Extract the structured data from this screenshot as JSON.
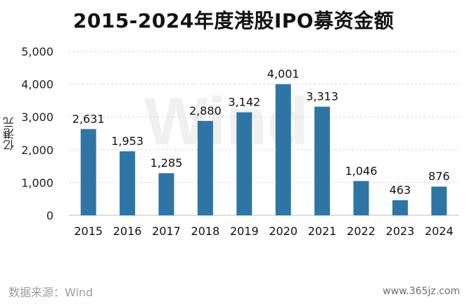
{
  "chart_data": {
    "type": "bar",
    "title": "2015-2024年度港股IPO募资金额",
    "ylabel": "亿港元",
    "xlabel": "",
    "categories": [
      "2015",
      "2016",
      "2017",
      "2018",
      "2019",
      "2020",
      "2021",
      "2022",
      "2023",
      "2024"
    ],
    "values": [
      2631,
      1953,
      1285,
      2880,
      3142,
      4001,
      3313,
      1046,
      463,
      876
    ],
    "value_labels": [
      "2,631",
      "1,953",
      "1,285",
      "2,880",
      "3,142",
      "4,001",
      "3,313",
      "1,046",
      "463",
      "876"
    ],
    "ylim": [
      0,
      5000
    ],
    "yticks": [
      0,
      1000,
      2000,
      3000,
      4000,
      5000
    ],
    "ytick_labels": [
      "0",
      "1,000",
      "2,000",
      "3,000",
      "4,000",
      "5,000"
    ],
    "grid": true,
    "bar_color": "#2E75A6"
  },
  "source": "数据来源：Wind",
  "watermark": "Wind",
  "site": "www.365jz.com"
}
